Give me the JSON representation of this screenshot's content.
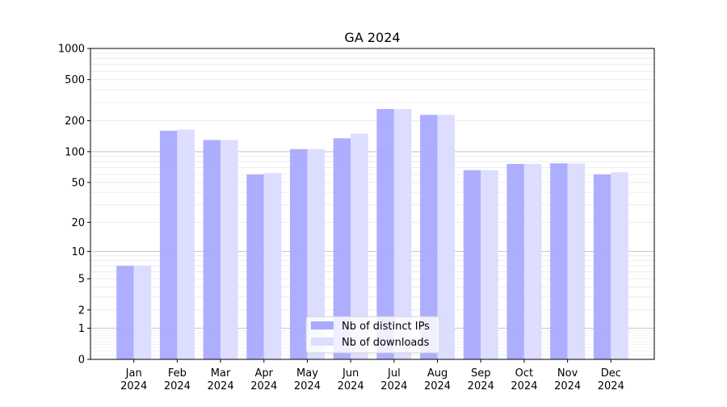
{
  "chart_data": {
    "type": "bar",
    "title": "GA 2024",
    "xlabel": "",
    "ylabel": "",
    "yscale": "log10(v+1)",
    "ylim": [
      0,
      1000
    ],
    "yticks": [
      0,
      1,
      2,
      5,
      10,
      20,
      50,
      100,
      200,
      500,
      1000
    ],
    "grid": true,
    "legend_position": "lower-center",
    "categories": [
      "Jan\n2024",
      "Feb\n2024",
      "Mar\n2024",
      "Apr\n2024",
      "May\n2024",
      "Jun\n2024",
      "Jul\n2024",
      "Aug\n2024",
      "Sep\n2024",
      "Oct\n2024",
      "Nov\n2024",
      "Dec\n2024"
    ],
    "series": [
      {
        "name": "Nb of distinct IPs",
        "color": "#aaaaff",
        "values": [
          7,
          160,
          130,
          60,
          106,
          135,
          260,
          228,
          66,
          76,
          77,
          60
        ]
      },
      {
        "name": "Nb of downloads",
        "color": "#ddddff",
        "values": [
          7,
          164,
          130,
          62,
          106,
          150,
          260,
          228,
          66,
          76,
          77,
          63
        ]
      }
    ]
  }
}
